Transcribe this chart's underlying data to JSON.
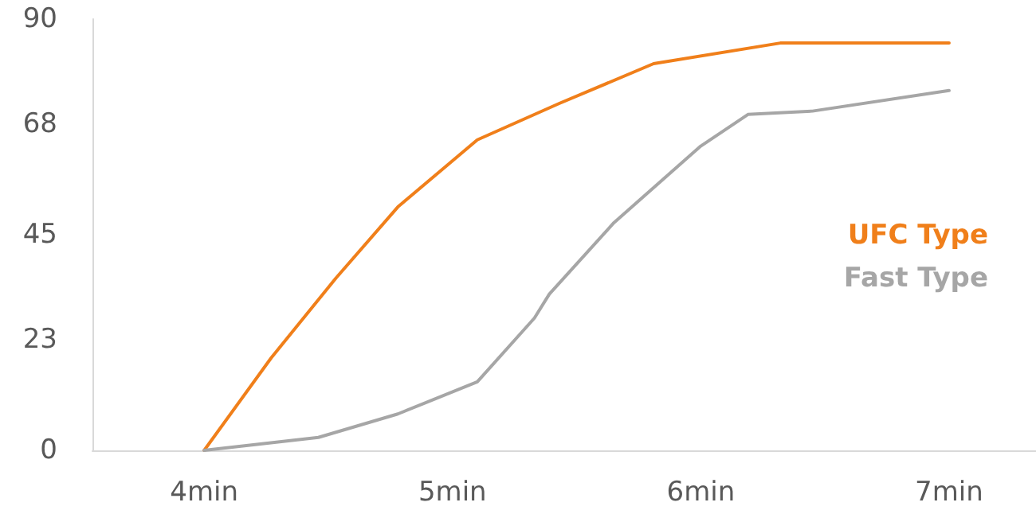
{
  "chart_data": {
    "type": "line",
    "xlim": [
      3.55,
      7.35
    ],
    "xticks": [
      {
        "value": 4,
        "label": "4min"
      },
      {
        "value": 5,
        "label": "5min"
      },
      {
        "value": 6,
        "label": "6min"
      },
      {
        "value": 7,
        "label": "7min"
      }
    ],
    "ylim": [
      0,
      90
    ],
    "yticks": [
      0,
      23,
      45,
      68,
      90
    ],
    "grid": false,
    "legend": "right",
    "marker": "none",
    "line_style": "solid",
    "series": [
      {
        "name": "UFC Type",
        "color": "#f07f1a",
        "x": [
          4,
          4.27,
          4.53,
          4.78,
          5.1,
          5.43,
          5.81,
          6.32,
          7
        ],
        "values": [
          0,
          19.3,
          35.9,
          50.8,
          64.8,
          72.4,
          80.7,
          85,
          85
        ]
      },
      {
        "name": "Fast Type",
        "color": "#a6a6a6",
        "x": [
          4,
          4.46,
          4.78,
          5.1,
          5.33,
          5.39,
          5.65,
          6,
          6.19,
          6.45,
          7
        ],
        "values": [
          0,
          2.7,
          7.6,
          14.3,
          27.6,
          32.6,
          47.5,
          63.5,
          70.1,
          70.8,
          75.1
        ]
      }
    ]
  }
}
